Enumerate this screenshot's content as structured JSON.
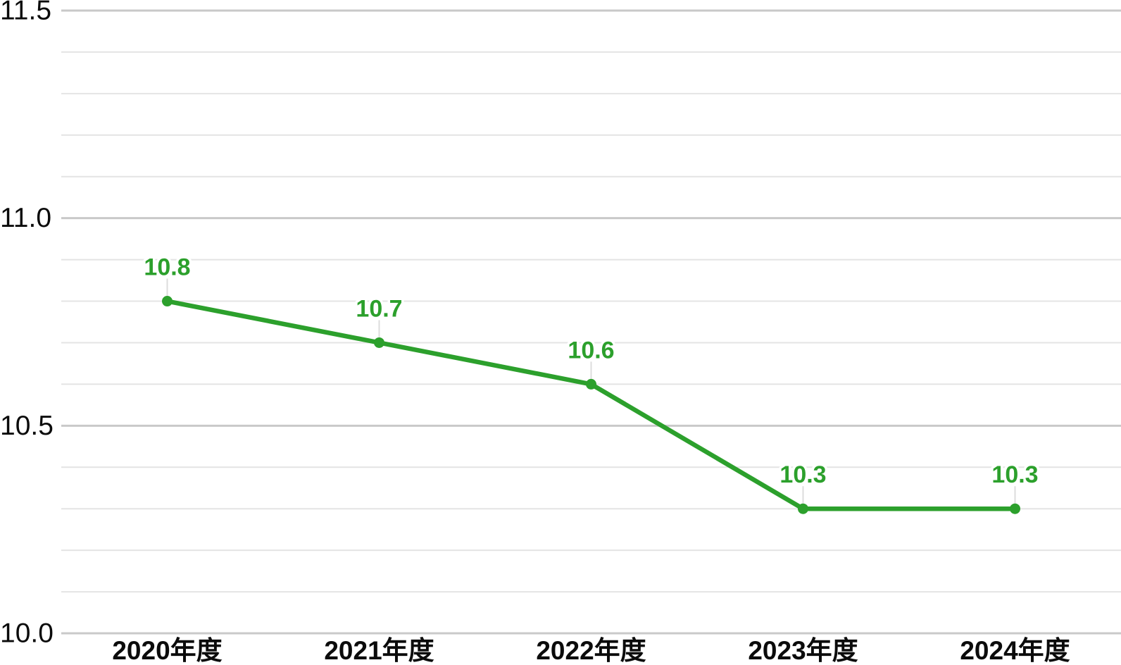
{
  "chart_data": {
    "type": "line",
    "title": "",
    "xlabel": "",
    "ylabel": "",
    "categories": [
      "2020年度",
      "2021年度",
      "2022年度",
      "2023年度",
      "2024年度"
    ],
    "series": [
      {
        "name": "series-1",
        "values": [
          10.8,
          10.7,
          10.6,
          10.3,
          10.3
        ]
      }
    ],
    "data_labels": [
      "10.8",
      "10.7",
      "10.6",
      "10.3",
      "10.3"
    ],
    "ylim": [
      10.0,
      11.5
    ],
    "minor_step": 0.1,
    "y_ticks": [
      {
        "value": 11.5,
        "label": "11.5"
      },
      {
        "value": 11.0,
        "label": "11.0"
      },
      {
        "value": 10.5,
        "label": "10.5"
      },
      {
        "value": 10.0,
        "label": "10.0"
      }
    ],
    "grid": "horizontal-only",
    "legend": "none",
    "colors": {
      "line": "#2ca02c",
      "point": "#2ca02c",
      "data_label": "#2ca02c",
      "major_grid": "#c9c9c9",
      "minor_grid": "#e4e4e4",
      "leader_line": "#dcdcdc",
      "axis_text": "#0b0b0b",
      "background": "#ffffff"
    }
  }
}
